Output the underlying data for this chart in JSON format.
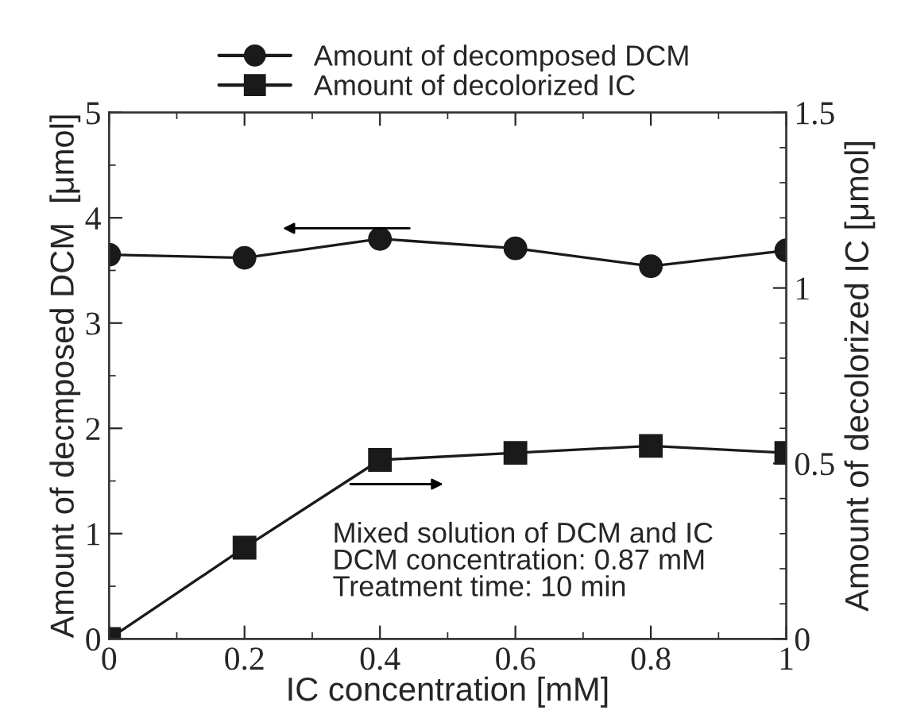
{
  "chart_data": {
    "type": "line",
    "xlabel": "IC concentration [mM]",
    "ylabel": "Amount of decmposed DCM  [μmol]",
    "y2label": "Amount of decolorized IC [μmol]",
    "x": [
      0,
      0.2,
      0.4,
      0.6,
      0.8,
      1
    ],
    "xlim": [
      0,
      1
    ],
    "xticks": [
      0,
      0.2,
      0.4,
      0.6,
      0.8,
      1
    ],
    "ylim": [
      0,
      5
    ],
    "yticks": [
      0,
      1,
      2,
      3,
      4,
      5
    ],
    "y2lim": [
      0,
      1.5
    ],
    "y2ticks": [
      0,
      0.5,
      1,
      1.5
    ],
    "series": [
      {
        "name": "Amount of decomposed DCM",
        "color": "#1a1a1a",
        "marker": "circle",
        "values": [
          3.65,
          3.62,
          3.8,
          3.71,
          3.54,
          3.69
        ]
      },
      {
        "name": "Amount of decolorized IC",
        "color": "#1a1a1a",
        "marker": "square",
        "axis": "y2",
        "values": [
          0,
          0.26,
          0.51,
          0.53,
          0.55,
          0.53
        ]
      }
    ],
    "annotations": [
      "Mixed solution of DCM and IC\nDCM concentration: 0.87 mM\nTreatment time: 10 min"
    ],
    "legend": "top",
    "line_style": "solid",
    "grid": false
  }
}
